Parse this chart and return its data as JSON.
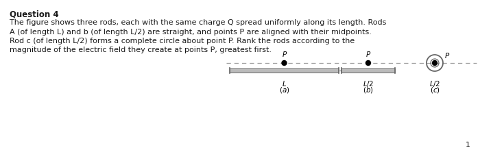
{
  "bg_color": "#ffffff",
  "text_color": "#1a1a1a",
  "title": "Question 4",
  "body_line1": "The figure shows three rods, each with the same charge Q spread uniformly along its length. Rods",
  "body_line2": "A (of length L) and b (of length L/2) are straight, and points P are aligned with their midpoints.",
  "body_line3": "Rod c (of length L/2) forms a complete circle about point P. Rank the rods according to the",
  "body_line4": "magnitude of the electric field they create at points P, greatest first.",
  "page_number": "1",
  "dashed_color": "#999999",
  "rod_color": "#bbbbbb",
  "rod_edge_color": "#666666",
  "font_size_title": 8.5,
  "font_size_body": 8.0,
  "font_size_label": 7.5,
  "font_size_page": 8.0
}
